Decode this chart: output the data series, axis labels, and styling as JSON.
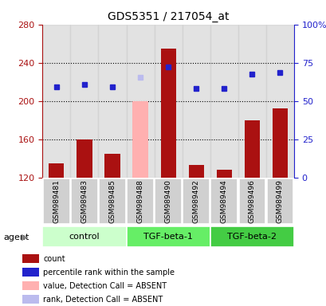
{
  "title": "GDS5351 / 217054_at",
  "samples": [
    "GSM989481",
    "GSM989483",
    "GSM989485",
    "GSM989488",
    "GSM989490",
    "GSM989492",
    "GSM989494",
    "GSM989496",
    "GSM989499"
  ],
  "bar_values": [
    135,
    160,
    145,
    200,
    255,
    133,
    128,
    180,
    192
  ],
  "bar_absent": [
    false,
    false,
    false,
    true,
    false,
    false,
    false,
    false,
    false
  ],
  "rank_values": [
    215,
    217,
    215,
    225,
    236,
    213,
    213,
    228,
    230
  ],
  "rank_absent": [
    false,
    false,
    false,
    true,
    false,
    false,
    false,
    false,
    false
  ],
  "groups": [
    {
      "label": "control",
      "start": 0,
      "end": 3
    },
    {
      "label": "TGF-beta-1",
      "start": 3,
      "end": 6
    },
    {
      "label": "TGF-beta-2",
      "start": 6,
      "end": 9
    }
  ],
  "ylim_left": [
    120,
    280
  ],
  "ylim_right": [
    0,
    100
  ],
  "yticks_left": [
    120,
    160,
    200,
    240,
    280
  ],
  "yticks_right": [
    0,
    25,
    50,
    75,
    100
  ],
  "ytick_labels_right": [
    "0",
    "25",
    "50",
    "75",
    "100%"
  ],
  "bar_color_normal": "#aa1111",
  "bar_color_absent": "#ffb0b0",
  "rank_color_normal": "#2222cc",
  "rank_color_absent": "#bbbbee",
  "group_colors": [
    "#ccffcc",
    "#66ee66",
    "#44cc44"
  ],
  "agent_label": "agent",
  "legend": [
    {
      "color": "#aa1111",
      "label": "count"
    },
    {
      "color": "#2222cc",
      "label": "percentile rank within the sample"
    },
    {
      "color": "#ffb0b0",
      "label": "value, Detection Call = ABSENT"
    },
    {
      "color": "#bbbbee",
      "label": "rank, Detection Call = ABSENT"
    }
  ]
}
